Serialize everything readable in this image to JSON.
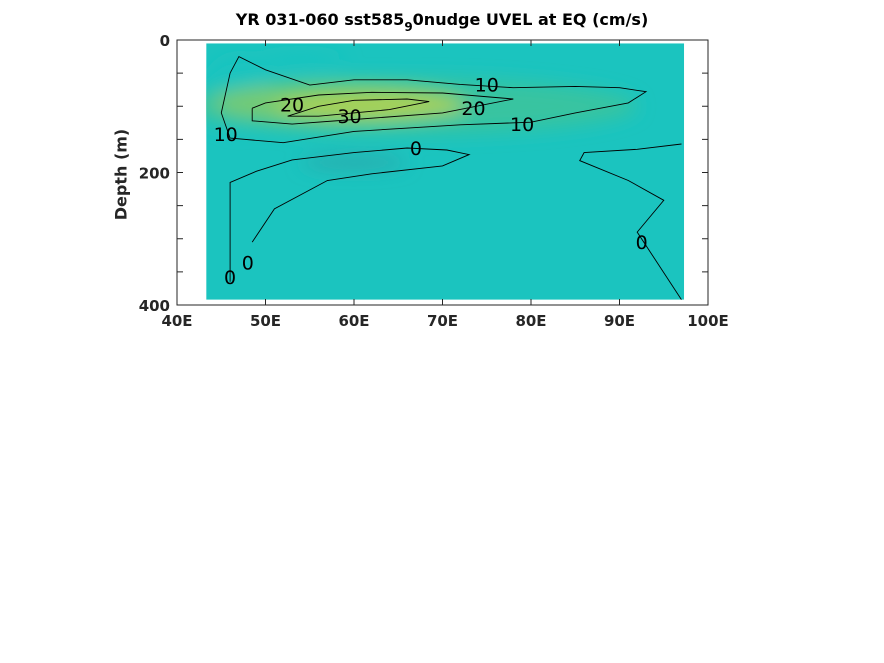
{
  "chart_data": {
    "type": "heatmap",
    "title": "YR 031-060 sst585",
    "title_sub": "9",
    "title_rest": "0nudge UVEL at EQ (cm/s)",
    "xlabel": "",
    "ylabel": "Depth (m)",
    "xlim": [
      40,
      100
    ],
    "ylim": [
      0,
      400
    ],
    "y_reversed": true,
    "x_ticks": [
      40,
      50,
      60,
      70,
      80,
      90,
      100
    ],
    "x_tick_labels": [
      "40E",
      "50E",
      "60E",
      "70E",
      "80E",
      "90E",
      "100E"
    ],
    "y_ticks": [
      0,
      200,
      400
    ],
    "y_tick_labels": [
      "0",
      "200",
      "400"
    ],
    "data_extent": {
      "x": [
        43.3,
        97.3
      ],
      "depth": [
        5,
        392
      ]
    },
    "background_value": 0,
    "colormap": [
      "#2fa6a8",
      "#1bc4bf",
      "#3cc49b",
      "#7fcb6c",
      "#b5d44c"
    ],
    "blobs": [
      {
        "x": 62,
        "depth": 100,
        "rx": 11,
        "ry": 18,
        "value": 32
      },
      {
        "x": 58,
        "depth": 95,
        "rx": 14,
        "ry": 30,
        "value": 18
      },
      {
        "x": 66,
        "depth": 100,
        "rx": 26,
        "ry": 42,
        "value": 9
      },
      {
        "x": 47,
        "depth": 80,
        "rx": 4,
        "ry": 55,
        "value": 6
      },
      {
        "x": 60,
        "depth": 185,
        "rx": 6,
        "ry": 10,
        "value": -4
      },
      {
        "x": 54,
        "depth": 30,
        "rx": 5,
        "ry": 12,
        "value": 3
      }
    ],
    "contours": [
      {
        "level": 30,
        "label": "30",
        "label_at": [
          59.5,
          115
        ],
        "points": [
          [
            52.5,
            115
          ],
          [
            56,
            100
          ],
          [
            60,
            91
          ],
          [
            66,
            89
          ],
          [
            68.5,
            93
          ],
          [
            64,
            105
          ],
          [
            56,
            115
          ],
          [
            52.5,
            115
          ]
        ]
      },
      {
        "level": 20,
        "label": "20",
        "label_at": [
          73.5,
          103
        ],
        "points": [
          [
            48.5,
            103
          ],
          [
            50,
            95
          ],
          [
            56,
            83
          ],
          [
            62,
            79
          ],
          [
            70,
            80
          ],
          [
            78,
            89
          ],
          [
            70,
            110
          ],
          [
            60,
            120
          ],
          [
            53,
            127
          ],
          [
            48.5,
            122
          ],
          [
            48.5,
            103
          ]
        ]
      },
      {
        "level": 20,
        "label": "20",
        "label_at": [
          53,
          97
        ],
        "points": []
      },
      {
        "level": 10,
        "label": "10",
        "label_at": [
          75,
          67
        ],
        "points": [
          [
            46,
            148
          ],
          [
            45,
            110
          ],
          [
            46,
            50
          ],
          [
            47,
            25
          ],
          [
            50,
            45
          ],
          [
            55,
            68
          ],
          [
            60,
            60
          ],
          [
            66,
            60
          ],
          [
            72,
            67
          ],
          [
            78,
            72
          ],
          [
            85,
            70
          ],
          [
            90,
            72
          ],
          [
            93,
            78
          ],
          [
            91,
            95
          ],
          [
            85,
            110
          ],
          [
            80,
            124
          ],
          [
            72,
            128
          ],
          [
            60,
            138
          ],
          [
            52,
            155
          ],
          [
            46,
            148
          ]
        ]
      },
      {
        "level": 10,
        "label": "10",
        "label_at": [
          45.5,
          142
        ],
        "points": []
      },
      {
        "level": 10,
        "label": "10",
        "label_at": [
          79,
          127
        ],
        "points": []
      },
      {
        "level": 0,
        "label": "0",
        "label_at": [
          67,
          163
        ],
        "points": [
          [
            46,
            365
          ],
          [
            46,
            215
          ],
          [
            49,
            198
          ],
          [
            53,
            181
          ],
          [
            60,
            170
          ],
          [
            66,
            163
          ],
          [
            70.5,
            166
          ],
          [
            73,
            173
          ],
          [
            70,
            190
          ],
          [
            62,
            202
          ],
          [
            57,
            212
          ],
          [
            51,
            255
          ],
          [
            48.5,
            305
          ]
        ]
      },
      {
        "level": 0,
        "label": "0",
        "label_at": [
          46,
          358
        ],
        "points": []
      },
      {
        "level": 0,
        "label": "0",
        "label_at": [
          48,
          336
        ],
        "points": []
      },
      {
        "level": 0,
        "label": "0",
        "label_at": [
          92.5,
          305
        ],
        "points": [
          [
            97,
            157
          ],
          [
            92,
            165
          ],
          [
            86,
            170
          ],
          [
            85.5,
            182
          ],
          [
            91,
            212
          ],
          [
            95,
            242
          ],
          [
            92,
            290
          ],
          [
            97,
            392
          ]
        ]
      }
    ]
  }
}
